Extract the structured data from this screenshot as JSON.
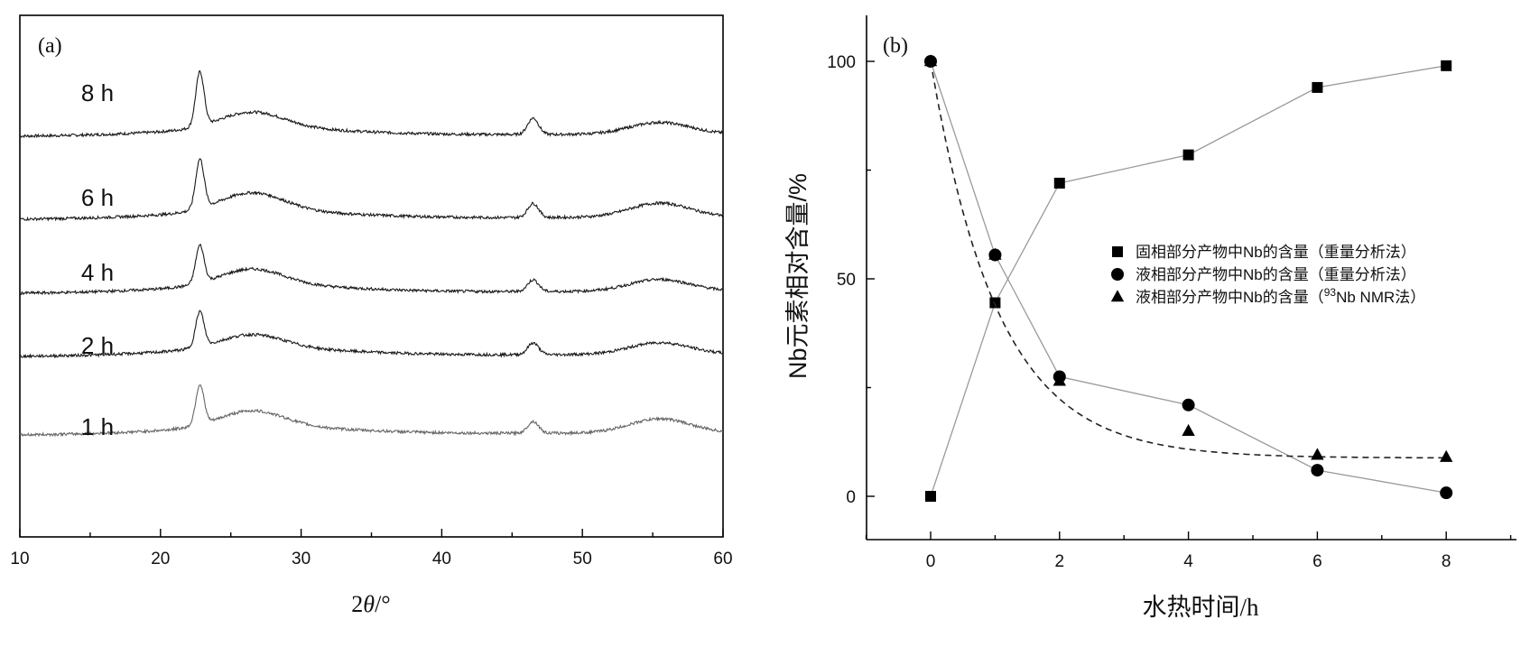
{
  "chart_data": [
    {
      "type": "line",
      "panel_label": "(a)",
      "xlabel_prefix": "2",
      "xlabel_theta": "θ",
      "xlabel_suffix": "/°",
      "ylabel": "",
      "xlim": [
        10,
        60
      ],
      "x_ticks": [
        "10",
        "20",
        "30",
        "40",
        "50",
        "60"
      ],
      "grid": false,
      "peaks_2theta": [
        22.8,
        26.5,
        46.5,
        55.5
      ],
      "series": [
        {
          "name": "8 h",
          "baseline": 0.25,
          "peak_intensity": [
            0.23,
            0.07,
            0.07,
            0.05
          ],
          "color": "#1a1a1a"
        },
        {
          "name": "6 h",
          "baseline": 0.25,
          "peak_intensity": [
            0.21,
            0.08,
            0.06,
            0.06
          ],
          "color": "#1a1a1a"
        },
        {
          "name": "4 h",
          "baseline": 0.25,
          "peak_intensity": [
            0.16,
            0.07,
            0.05,
            0.05
          ],
          "color": "#1a1a1a"
        },
        {
          "name": "2 h",
          "baseline": 0.25,
          "peak_intensity": [
            0.15,
            0.06,
            0.05,
            0.05
          ],
          "color": "#1a1a1a"
        },
        {
          "name": "1 h",
          "baseline": 0.25,
          "peak_intensity": [
            0.17,
            0.07,
            0.05,
            0.06
          ],
          "color": "#666666"
        }
      ]
    },
    {
      "type": "line",
      "panel_label": "(b)",
      "xlabel": "水热时间/h",
      "ylabel": "Nb元素相对含量/%",
      "xlim": [
        -1,
        9
      ],
      "ylim": [
        -10,
        110
      ],
      "x_ticks": [
        0,
        2,
        4,
        6,
        8
      ],
      "y_ticks": [
        0,
        50,
        100
      ],
      "grid": false,
      "legend_position": "center-right",
      "series": [
        {
          "name": "固相部分产物中Nb的含量（重量分析法）",
          "marker": "square",
          "line": "solid",
          "x": [
            0,
            1,
            2,
            4,
            6,
            8
          ],
          "y": [
            0,
            44.5,
            72,
            78.5,
            94,
            99
          ]
        },
        {
          "name": "液相部分产物中Nb的含量（重量分析法）",
          "marker": "circle",
          "line": "solid",
          "x": [
            0,
            1,
            2,
            4,
            6,
            8
          ],
          "y": [
            100,
            55.5,
            27.5,
            21,
            6,
            0.8
          ]
        },
        {
          "name_prefix": "液相部分产物中Nb的含量（",
          "name_sup": "93",
          "name_suffix": "Nb NMR法）",
          "marker": "triangle",
          "line": "dashed-fit",
          "x": [
            0,
            1,
            2,
            4,
            6,
            8
          ],
          "y": [
            100,
            55.5,
            26.5,
            15,
            9.5,
            9
          ]
        }
      ]
    }
  ]
}
